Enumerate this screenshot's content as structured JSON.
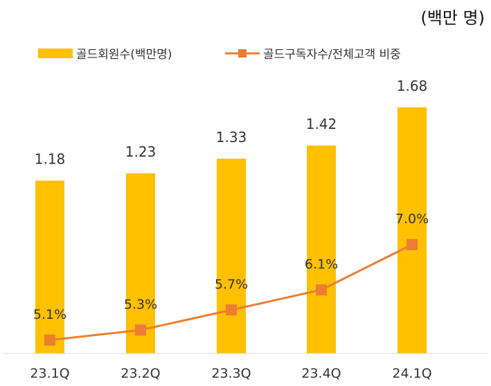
{
  "chart_data": {
    "type": "bar",
    "unit_label": "(백만 명)",
    "categories": [
      "23.1Q",
      "23.2Q",
      "23.3Q",
      "23.4Q",
      "24.1Q"
    ],
    "series": [
      {
        "name": "골드회원수(백만명)",
        "type": "bar",
        "values": [
          1.18,
          1.23,
          1.33,
          1.42,
          1.68
        ],
        "labels": [
          "1.18",
          "1.23",
          "1.33",
          "1.42",
          "1.68"
        ],
        "color": "#FFC000"
      },
      {
        "name": "골드구독자수/전체고객 비중",
        "type": "line",
        "values": [
          5.1,
          5.3,
          5.7,
          6.1,
          7.0
        ],
        "labels": [
          "5.1%",
          "5.3%",
          "5.7%",
          "6.1%",
          "7.0%"
        ],
        "color": "#ED7D31"
      }
    ],
    "bar_ylim": [
      0,
      1.68
    ],
    "line_ylim": [
      5.0,
      7.0
    ],
    "legend_position": "top"
  }
}
